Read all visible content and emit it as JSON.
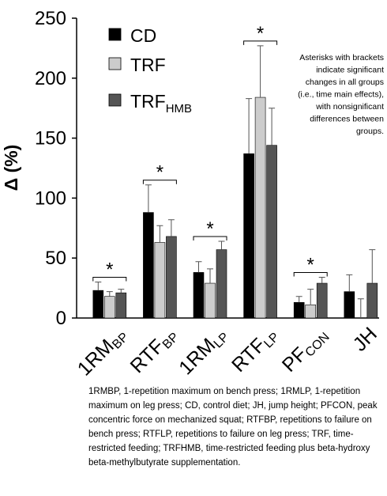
{
  "chart_data": {
    "type": "bar",
    "y_label": "Δ (%)",
    "categories": [
      {
        "text": "1RM",
        "sub": "BP"
      },
      {
        "text": "RTF",
        "sub": "BP"
      },
      {
        "text": "1RM",
        "sub": "LP"
      },
      {
        "text": "RTF",
        "sub": "LP"
      },
      {
        "text": "PF",
        "sub": "CON"
      },
      {
        "text": "JH",
        "sub": null
      }
    ],
    "series": [
      {
        "name": "CD",
        "name_sub": null,
        "color": "#000000",
        "values": [
          23,
          88,
          38,
          137,
          13,
          22
        ],
        "errors": [
          7,
          23,
          9,
          46,
          5,
          14
        ]
      },
      {
        "name": "TRF",
        "name_sub": null,
        "color": "#cccccc",
        "values": [
          18,
          63,
          29,
          184,
          11,
          0
        ],
        "errors": [
          4,
          14,
          12,
          43,
          13,
          16
        ]
      },
      {
        "name": "TRF",
        "name_sub": "HMB",
        "color": "#555555",
        "values": [
          21,
          68,
          57,
          144,
          29,
          29
        ],
        "errors": [
          3,
          14,
          7,
          31,
          5,
          28
        ]
      }
    ],
    "significance_labels": [
      "*",
      "*",
      "*",
      "*",
      "*",
      null
    ],
    "ylim": [
      0,
      250
    ],
    "yticks": [
      0,
      50,
      100,
      150,
      200,
      250
    ],
    "note": [
      "Asterisks with brackets",
      "indicate significant",
      "changes in all groups",
      "(i.e., time main effects),",
      "with nonsignificant",
      "differences between",
      "groups."
    ],
    "caption": "1RMBP, 1-repetition maximum on bench press; 1RMLP, 1-repetition maximum on leg press; CD, control diet; JH, jump height; PFCON, peak concentric force on mechanized squat; RTFBP, repetitions to failure on bench press; RTFLP, repetitions to failure on leg press; TRF, time-restricted feeding; TRFHMB, time-restricted feeding plus beta-hydroxy beta-methylbutyrate supplementation."
  }
}
